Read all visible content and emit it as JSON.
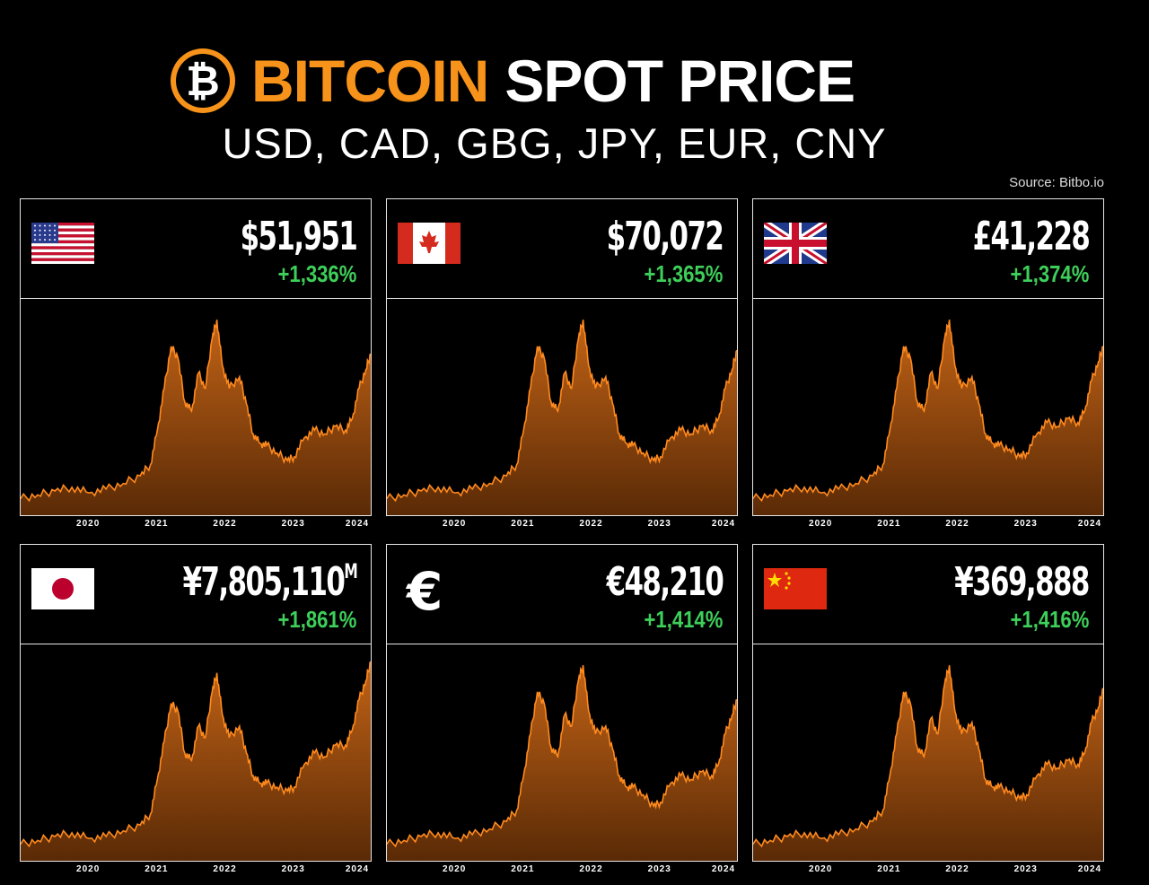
{
  "header": {
    "logo_symbol": "₿",
    "title_orange": "BITCOIN",
    "title_white": "SPOT PRICE",
    "subtitle": "USD, CAD, GBG, JPY, EUR, CNY",
    "source": "Source: Bitbo.io"
  },
  "colors": {
    "bitcoin_orange": "#f7931a",
    "positive_green": "#3ecf5a",
    "area_fill": "#b35a14",
    "line": "#ff8a1e"
  },
  "panels": [
    {
      "currency": "USD",
      "flag_icon": "us-flag-icon",
      "price": "$51,951",
      "price_suffix": "",
      "change": "+1,336%"
    },
    {
      "currency": "CAD",
      "flag_icon": "canada-flag-icon",
      "price": "$70,072",
      "price_suffix": "",
      "change": "+1,365%"
    },
    {
      "currency": "GBP",
      "flag_icon": "uk-flag-icon",
      "price": "£41,228",
      "price_suffix": "",
      "change": "+1,374%"
    },
    {
      "currency": "JPY",
      "flag_icon": "japan-flag-icon",
      "price": "¥7,805,110",
      "price_suffix": "M",
      "change": "+1,861%"
    },
    {
      "currency": "EUR",
      "flag_icon": "euro-sign-icon",
      "euro_symbol": "€",
      "price": "€48,210",
      "price_suffix": "",
      "change": "+1,414%"
    },
    {
      "currency": "CNY",
      "flag_icon": "china-flag-icon",
      "price": "¥369,888",
      "price_suffix": "",
      "change": "+1,416%"
    }
  ],
  "chart_data": {
    "type": "area",
    "x_ticks": [
      "2020",
      "2021",
      "2022",
      "2023",
      "2024"
    ],
    "x": [
      2019.0,
      2019.25,
      2019.5,
      2019.75,
      2020.0,
      2020.25,
      2020.5,
      2020.75,
      2020.9,
      2021.0,
      2021.1,
      2021.2,
      2021.3,
      2021.4,
      2021.5,
      2021.6,
      2021.7,
      2021.8,
      2021.87,
      2021.95,
      2022.05,
      2022.2,
      2022.3,
      2022.4,
      2022.5,
      2022.6,
      2022.75,
      2022.9,
      2023.0,
      2023.15,
      2023.3,
      2023.45,
      2023.6,
      2023.75,
      2023.85,
      2023.95,
      2024.05,
      2024.12
    ],
    "series": [
      {
        "values": [
          0.04,
          0.06,
          0.08,
          0.1,
          0.07,
          0.09,
          0.12,
          0.16,
          0.22,
          0.4,
          0.62,
          0.84,
          0.78,
          0.55,
          0.5,
          0.7,
          0.62,
          0.88,
          0.98,
          0.74,
          0.62,
          0.68,
          0.54,
          0.38,
          0.33,
          0.32,
          0.28,
          0.24,
          0.26,
          0.36,
          0.4,
          0.38,
          0.42,
          0.4,
          0.46,
          0.62,
          0.72,
          0.8
        ]
      },
      {
        "values": [
          0.04,
          0.06,
          0.08,
          0.1,
          0.07,
          0.09,
          0.12,
          0.16,
          0.22,
          0.4,
          0.62,
          0.84,
          0.78,
          0.55,
          0.5,
          0.7,
          0.62,
          0.88,
          0.98,
          0.74,
          0.62,
          0.68,
          0.54,
          0.38,
          0.33,
          0.32,
          0.28,
          0.24,
          0.26,
          0.36,
          0.4,
          0.38,
          0.42,
          0.4,
          0.46,
          0.62,
          0.72,
          0.82
        ]
      },
      {
        "values": [
          0.04,
          0.06,
          0.08,
          0.1,
          0.07,
          0.09,
          0.12,
          0.16,
          0.22,
          0.4,
          0.62,
          0.84,
          0.78,
          0.55,
          0.5,
          0.7,
          0.62,
          0.88,
          0.98,
          0.74,
          0.62,
          0.68,
          0.54,
          0.38,
          0.33,
          0.32,
          0.3,
          0.26,
          0.28,
          0.38,
          0.44,
          0.42,
          0.46,
          0.44,
          0.5,
          0.66,
          0.76,
          0.84
        ]
      },
      {
        "values": [
          0.04,
          0.06,
          0.08,
          0.1,
          0.07,
          0.08,
          0.11,
          0.14,
          0.2,
          0.38,
          0.58,
          0.78,
          0.74,
          0.52,
          0.48,
          0.66,
          0.6,
          0.84,
          0.94,
          0.72,
          0.6,
          0.66,
          0.52,
          0.4,
          0.36,
          0.36,
          0.34,
          0.32,
          0.34,
          0.46,
          0.52,
          0.5,
          0.56,
          0.56,
          0.64,
          0.8,
          0.9,
          1.0
        ]
      },
      {
        "values": [
          0.04,
          0.06,
          0.08,
          0.1,
          0.07,
          0.09,
          0.12,
          0.16,
          0.22,
          0.4,
          0.62,
          0.84,
          0.78,
          0.55,
          0.5,
          0.72,
          0.66,
          0.9,
          0.98,
          0.74,
          0.62,
          0.66,
          0.54,
          0.4,
          0.34,
          0.34,
          0.3,
          0.24,
          0.26,
          0.36,
          0.4,
          0.38,
          0.42,
          0.4,
          0.46,
          0.62,
          0.72,
          0.8
        ]
      },
      {
        "values": [
          0.04,
          0.06,
          0.08,
          0.1,
          0.07,
          0.09,
          0.12,
          0.16,
          0.22,
          0.4,
          0.62,
          0.84,
          0.78,
          0.55,
          0.5,
          0.7,
          0.62,
          0.88,
          0.98,
          0.74,
          0.62,
          0.68,
          0.54,
          0.38,
          0.34,
          0.34,
          0.32,
          0.28,
          0.3,
          0.4,
          0.46,
          0.44,
          0.48,
          0.46,
          0.52,
          0.68,
          0.76,
          0.86
        ]
      }
    ]
  }
}
